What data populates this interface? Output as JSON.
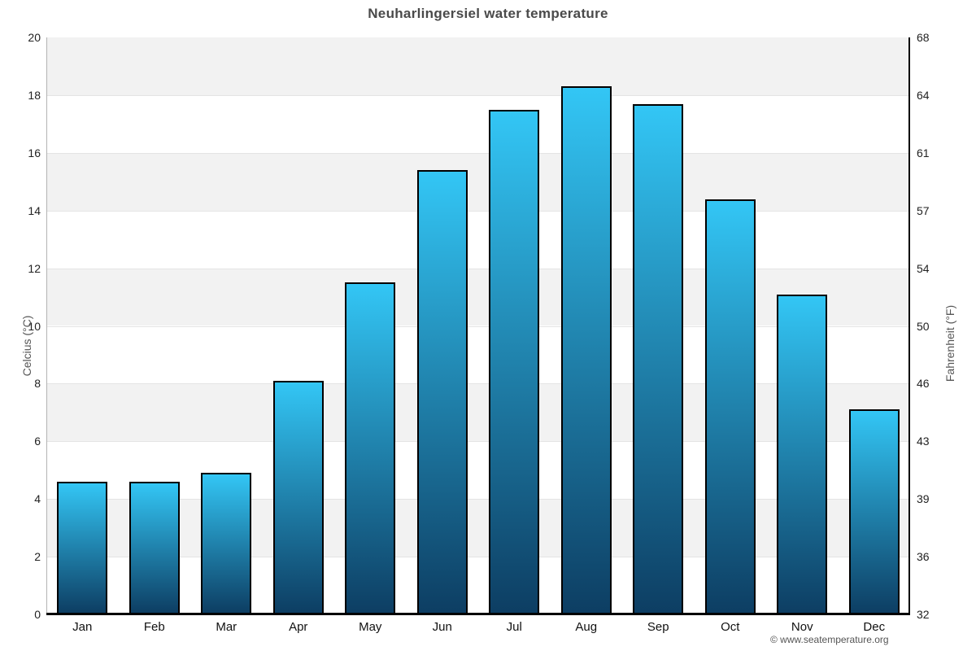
{
  "title": "Neuharlingersiel water temperature",
  "axes": {
    "left_label": "Celcius (°C)",
    "right_label": "Fahrenheit (°F)"
  },
  "footer": {
    "copyright": "© www.seatemperature.org"
  },
  "colors": {
    "bar_gradient_top": "#33c6f5",
    "bar_gradient_bottom": "#0d3e63",
    "bar_border": "#000000",
    "band_gray": "#f2f2f2",
    "band_white": "#ffffff",
    "gridline": "#e4e4e4",
    "title_text": "#4a4a4a",
    "axis_text": "#555555"
  },
  "chart_data": {
    "type": "bar",
    "title": "Neuharlingersiel water temperature",
    "categories": [
      "Jan",
      "Feb",
      "Mar",
      "Apr",
      "May",
      "Jun",
      "Jul",
      "Aug",
      "Sep",
      "Oct",
      "Nov",
      "Dec"
    ],
    "values": [
      4.6,
      4.6,
      4.9,
      8.1,
      11.5,
      15.4,
      17.5,
      18.3,
      17.7,
      14.4,
      11.1,
      7.1
    ],
    "ylabel_left": "Celcius (°C)",
    "ylabel_right": "Fahrenheit (°F)",
    "xlabel": "",
    "ylim": [
      0,
      20
    ],
    "celsius_ticks": [
      0,
      2,
      4,
      6,
      8,
      10,
      12,
      14,
      16,
      18,
      20
    ],
    "fahrenheit_ticks": [
      32,
      36,
      39,
      43,
      46,
      50,
      54,
      57,
      61,
      64,
      68
    ],
    "grid": "alternating horizontal bands every 2°C, gray band at 18–20",
    "legend": "none",
    "bar_style": "vertical gradient light blue at bar top to dark navy at baseline, black outline"
  }
}
